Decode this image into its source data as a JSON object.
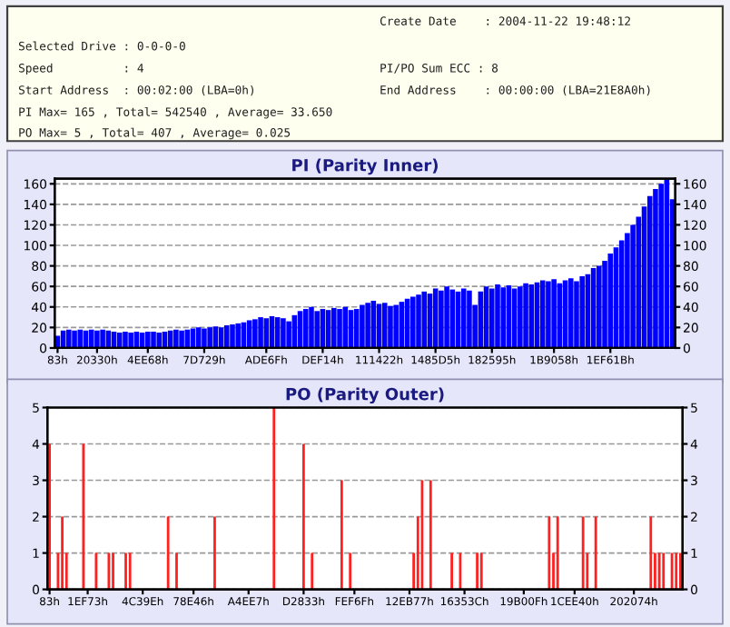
{
  "chart_data": [
    {
      "type": "other",
      "annotations": [
        "Create Date    : 2004-11-22 19:48:12",
        "Selected Drive : 0-0-0-0",
        "Speed          : 4",
        "PI/PO Sum ECC : 8",
        "Start Address  : 00:02:00 (LBA=0h)",
        "End Address    : 00:00:00 (LBA=21E8A0h)",
        "PI Max= 165 , Total= 542540 , Average= 33.650",
        "PO Max= 5 , Total= 407 , Average= 0.025"
      ]
    },
    {
      "type": "bar",
      "title": "PI (Parity Inner)",
      "color": "#0000ff",
      "grid": "y",
      "ylim": [
        0,
        165
      ],
      "yticks": [
        0,
        20,
        40,
        60,
        80,
        100,
        120,
        140,
        160
      ],
      "y2lim": [
        0,
        165
      ],
      "y2ticks": [
        0,
        20,
        40,
        60,
        80,
        100,
        120,
        140,
        160
      ],
      "categories": [
        "83h",
        null,
        null,
        null,
        null,
        null,
        null,
        "20330h",
        null,
        null,
        null,
        null,
        null,
        null,
        null,
        null,
        "4EE68h",
        null,
        null,
        null,
        null,
        null,
        null,
        null,
        null,
        null,
        "7D729h",
        null,
        null,
        null,
        null,
        null,
        null,
        null,
        null,
        null,
        null,
        "ADE6Fh",
        null,
        null,
        null,
        null,
        null,
        null,
        null,
        null,
        null,
        "DEF14h",
        null,
        null,
        null,
        null,
        null,
        null,
        null,
        null,
        null,
        "111422h",
        null,
        null,
        null,
        null,
        null,
        null,
        null,
        null,
        null,
        "1485D5h",
        null,
        null,
        null,
        null,
        null,
        null,
        null,
        null,
        null,
        "182595h",
        null,
        null,
        null,
        null,
        null,
        null,
        null,
        null,
        null,
        null,
        "1B9058h",
        null,
        null,
        null,
        null,
        null,
        null,
        null,
        null,
        null,
        "1EF61Bh",
        null,
        null,
        null,
        null,
        null,
        null,
        null,
        null,
        null,
        null,
        null
      ],
      "values": [
        12,
        17,
        18,
        17,
        18,
        17,
        18,
        17,
        18,
        17,
        16,
        15,
        16,
        15,
        16,
        15,
        16,
        16,
        15,
        16,
        17,
        18,
        17,
        18,
        19,
        20,
        19,
        20,
        21,
        20,
        22,
        23,
        24,
        25,
        27,
        28,
        30,
        29,
        31,
        30,
        29,
        26,
        32,
        36,
        38,
        40,
        36,
        38,
        37,
        39,
        38,
        40,
        37,
        38,
        42,
        44,
        46,
        43,
        44,
        41,
        42,
        45,
        48,
        50,
        52,
        55,
        53,
        58,
        56,
        60,
        57,
        55,
        58,
        56,
        42,
        55,
        60,
        58,
        62,
        59,
        61,
        58,
        60,
        63,
        62,
        64,
        66,
        65,
        67,
        63,
        66,
        68,
        65,
        70,
        72,
        78,
        80,
        85,
        92,
        98,
        105,
        112,
        120,
        128,
        138,
        148,
        155,
        160,
        164,
        145
      ]
    },
    {
      "type": "bar",
      "title": "PO (Parity Outer)",
      "color": "#ff2020",
      "grid": "y",
      "ylim": [
        0,
        5
      ],
      "yticks": [
        0,
        1,
        2,
        3,
        4,
        5
      ],
      "y2lim": [
        0,
        5
      ],
      "y2ticks": [
        0,
        1,
        2,
        3,
        4,
        5
      ],
      "categories": [
        "83h",
        null,
        null,
        null,
        null,
        null,
        null,
        null,
        null,
        "1EF73h",
        null,
        null,
        null,
        null,
        null,
        null,
        null,
        null,
        null,
        null,
        null,
        null,
        "4C39Eh",
        null,
        null,
        null,
        null,
        null,
        null,
        null,
        null,
        null,
        null,
        null,
        "78E46h",
        null,
        null,
        null,
        null,
        null,
        null,
        null,
        null,
        null,
        null,
        null,
        null,
        "A4EE7h",
        null,
        null,
        null,
        null,
        null,
        null,
        null,
        null,
        null,
        null,
        null,
        null,
        "D2833h",
        null,
        null,
        null,
        null,
        null,
        null,
        null,
        null,
        null,
        null,
        null,
        "FEF6Fh",
        null,
        null,
        null,
        null,
        null,
        null,
        null,
        null,
        null,
        null,
        null,
        null,
        "12EB77h",
        null,
        null,
        null,
        null,
        null,
        null,
        null,
        null,
        null,
        null,
        null,
        null,
        "16353Ch",
        null,
        null,
        null,
        null,
        null,
        null,
        null,
        null,
        null,
        null,
        null,
        null,
        null,
        "19B00Fh",
        null,
        null,
        null,
        null,
        null,
        null,
        null,
        null,
        null,
        null,
        null,
        "1CEE40h",
        null,
        null,
        null,
        null,
        null,
        null,
        null,
        null,
        null,
        null,
        null,
        null,
        null,
        "202074h",
        null,
        null,
        null,
        null,
        null,
        null,
        null,
        null,
        null,
        null,
        null
      ],
      "values": [
        4,
        0,
        1,
        2,
        1,
        0,
        0,
        0,
        4,
        0,
        0,
        1,
        0,
        0,
        1,
        1,
        0,
        0,
        1,
        1,
        0,
        0,
        0,
        0,
        0,
        0,
        0,
        0,
        2,
        0,
        1,
        0,
        0,
        0,
        0,
        0,
        0,
        0,
        0,
        2,
        0,
        0,
        0,
        0,
        0,
        0,
        0,
        0,
        0,
        0,
        0,
        0,
        0,
        5,
        0,
        0,
        0,
        0,
        0,
        0,
        4,
        0,
        1,
        0,
        0,
        0,
        0,
        0,
        0,
        3,
        0,
        1,
        0,
        0,
        0,
        0,
        0,
        0,
        0,
        0,
        0,
        0,
        0,
        0,
        0,
        0,
        1,
        2,
        3,
        0,
        3,
        0,
        0,
        0,
        0,
        1,
        0,
        1,
        0,
        0,
        0,
        1,
        1,
        0,
        0,
        0,
        0,
        0,
        0,
        0,
        0,
        0,
        0,
        0,
        0,
        0,
        0,
        0,
        2,
        1,
        2,
        0,
        0,
        0,
        0,
        0,
        2,
        1,
        0,
        2,
        0,
        0,
        0,
        0,
        0,
        0,
        0,
        0,
        0,
        0,
        0,
        0,
        2,
        1,
        1,
        1,
        0,
        1,
        1,
        1
      ]
    }
  ]
}
